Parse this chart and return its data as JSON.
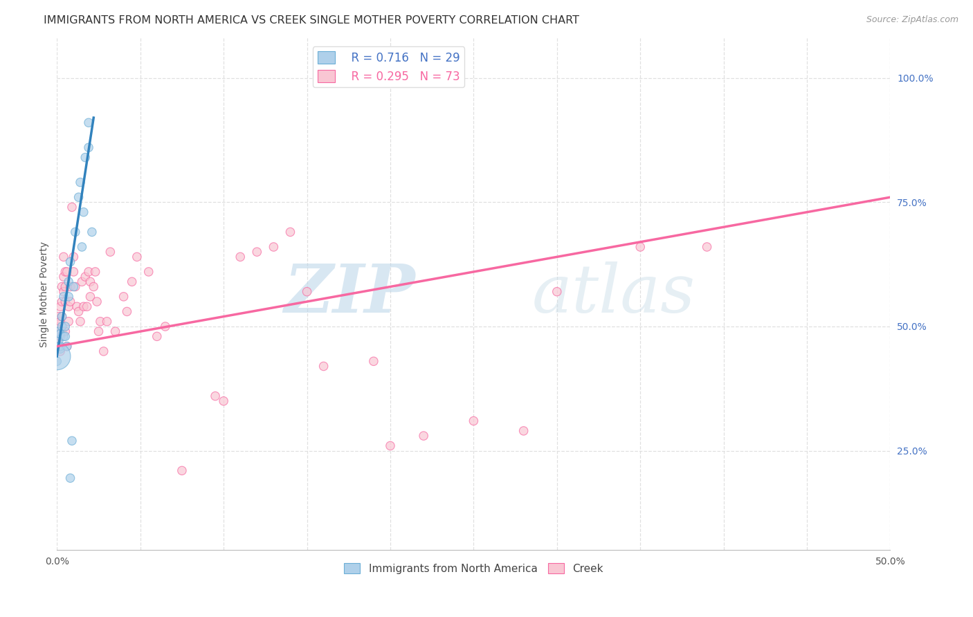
{
  "title": "IMMIGRANTS FROM NORTH AMERICA VS CREEK SINGLE MOTHER POVERTY CORRELATION CHART",
  "source": "Source: ZipAtlas.com",
  "ylabel": "Single Mother Poverty",
  "ytick_vals": [
    0.25,
    0.5,
    0.75,
    1.0
  ],
  "xlim": [
    0.0,
    0.5
  ],
  "ylim": [
    0.05,
    1.08
  ],
  "legend_blue_r": "R = 0.716",
  "legend_blue_n": "N = 29",
  "legend_pink_r": "R = 0.295",
  "legend_pink_n": "N = 73",
  "legend_label_blue": "Immigrants from North America",
  "legend_label_pink": "Creek",
  "blue_color": "#afd0ea",
  "pink_color": "#f9c6d3",
  "blue_edge_color": "#6baed6",
  "pink_edge_color": "#f768a1",
  "blue_line_color": "#3182bd",
  "pink_line_color": "#f768a1",
  "legend_r_n_color_blue": "#4472c4",
  "legend_r_n_color_pink": "#f768a1",
  "watermark": "ZIPatlas",
  "blue_scatter": [
    [
      0.0,
      0.43
    ],
    [
      0.001,
      0.47
    ],
    [
      0.001,
      0.49
    ],
    [
      0.002,
      0.485
    ],
    [
      0.002,
      0.455
    ],
    [
      0.002,
      0.46
    ],
    [
      0.003,
      0.52
    ],
    [
      0.003,
      0.5
    ],
    [
      0.004,
      0.56
    ],
    [
      0.004,
      0.48
    ],
    [
      0.005,
      0.5
    ],
    [
      0.005,
      0.48
    ],
    [
      0.006,
      0.46
    ],
    [
      0.007,
      0.59
    ],
    [
      0.007,
      0.56
    ],
    [
      0.008,
      0.63
    ],
    [
      0.009,
      0.27
    ],
    [
      0.01,
      0.58
    ],
    [
      0.011,
      0.69
    ],
    [
      0.013,
      0.76
    ],
    [
      0.014,
      0.79
    ],
    [
      0.015,
      0.66
    ],
    [
      0.016,
      0.73
    ],
    [
      0.017,
      0.84
    ],
    [
      0.019,
      0.86
    ],
    [
      0.019,
      0.91
    ],
    [
      0.021,
      0.69
    ],
    [
      0.008,
      0.195
    ],
    [
      0.0,
      0.44
    ]
  ],
  "blue_sizes": [
    80,
    80,
    80,
    80,
    80,
    80,
    80,
    80,
    80,
    80,
    80,
    80,
    80,
    80,
    80,
    80,
    80,
    80,
    80,
    80,
    80,
    80,
    80,
    80,
    80,
    80,
    80,
    80,
    800
  ],
  "pink_scatter": [
    [
      0.0,
      0.47
    ],
    [
      0.0,
      0.5
    ],
    [
      0.001,
      0.52
    ],
    [
      0.001,
      0.49
    ],
    [
      0.001,
      0.46
    ],
    [
      0.002,
      0.54
    ],
    [
      0.002,
      0.51
    ],
    [
      0.002,
      0.48
    ],
    [
      0.002,
      0.45
    ],
    [
      0.003,
      0.58
    ],
    [
      0.003,
      0.55
    ],
    [
      0.003,
      0.52
    ],
    [
      0.003,
      0.49
    ],
    [
      0.004,
      0.64
    ],
    [
      0.004,
      0.6
    ],
    [
      0.004,
      0.57
    ],
    [
      0.005,
      0.61
    ],
    [
      0.005,
      0.58
    ],
    [
      0.005,
      0.55
    ],
    [
      0.005,
      0.49
    ],
    [
      0.006,
      0.61
    ],
    [
      0.006,
      0.46
    ],
    [
      0.007,
      0.54
    ],
    [
      0.007,
      0.51
    ],
    [
      0.008,
      0.58
    ],
    [
      0.008,
      0.55
    ],
    [
      0.009,
      0.74
    ],
    [
      0.01,
      0.64
    ],
    [
      0.01,
      0.61
    ],
    [
      0.011,
      0.58
    ],
    [
      0.012,
      0.54
    ],
    [
      0.013,
      0.53
    ],
    [
      0.014,
      0.51
    ],
    [
      0.015,
      0.59
    ],
    [
      0.016,
      0.54
    ],
    [
      0.017,
      0.6
    ],
    [
      0.018,
      0.54
    ],
    [
      0.019,
      0.61
    ],
    [
      0.02,
      0.59
    ],
    [
      0.02,
      0.56
    ],
    [
      0.022,
      0.58
    ],
    [
      0.023,
      0.61
    ],
    [
      0.024,
      0.55
    ],
    [
      0.025,
      0.49
    ],
    [
      0.026,
      0.51
    ],
    [
      0.028,
      0.45
    ],
    [
      0.03,
      0.51
    ],
    [
      0.032,
      0.65
    ],
    [
      0.035,
      0.49
    ],
    [
      0.04,
      0.56
    ],
    [
      0.042,
      0.53
    ],
    [
      0.045,
      0.59
    ],
    [
      0.048,
      0.64
    ],
    [
      0.055,
      0.61
    ],
    [
      0.06,
      0.48
    ],
    [
      0.065,
      0.5
    ],
    [
      0.075,
      0.21
    ],
    [
      0.095,
      0.36
    ],
    [
      0.1,
      0.35
    ],
    [
      0.11,
      0.64
    ],
    [
      0.12,
      0.65
    ],
    [
      0.13,
      0.66
    ],
    [
      0.14,
      0.69
    ],
    [
      0.15,
      0.57
    ],
    [
      0.16,
      0.42
    ],
    [
      0.19,
      0.43
    ],
    [
      0.2,
      0.26
    ],
    [
      0.22,
      0.28
    ],
    [
      0.25,
      0.31
    ],
    [
      0.28,
      0.29
    ],
    [
      0.3,
      0.57
    ],
    [
      0.35,
      0.66
    ],
    [
      0.39,
      0.66
    ]
  ],
  "pink_sizes": [
    80,
    80,
    80,
    80,
    80,
    80,
    80,
    80,
    80,
    80,
    80,
    80,
    80,
    80,
    80,
    80,
    80,
    80,
    80,
    80,
    80,
    80,
    80,
    80,
    80,
    80,
    80,
    80,
    80,
    80,
    80,
    80,
    80,
    80,
    80,
    80,
    80,
    80,
    80,
    80,
    80,
    80,
    80,
    80,
    80,
    80,
    80,
    80,
    80,
    80,
    80,
    80,
    80,
    80,
    80,
    80,
    80,
    80,
    80,
    80,
    80,
    80,
    80,
    80,
    80,
    80,
    80,
    80,
    80,
    80,
    80,
    80,
    80
  ],
  "blue_trendline": [
    [
      0.0,
      0.44
    ],
    [
      0.022,
      0.92
    ]
  ],
  "pink_trendline": [
    [
      0.0,
      0.46
    ],
    [
      0.5,
      0.76
    ]
  ],
  "background_color": "#ffffff",
  "grid_color": "#e0e0e0",
  "title_fontsize": 11.5,
  "axis_label_fontsize": 10,
  "right_tick_color": "#4472c4"
}
